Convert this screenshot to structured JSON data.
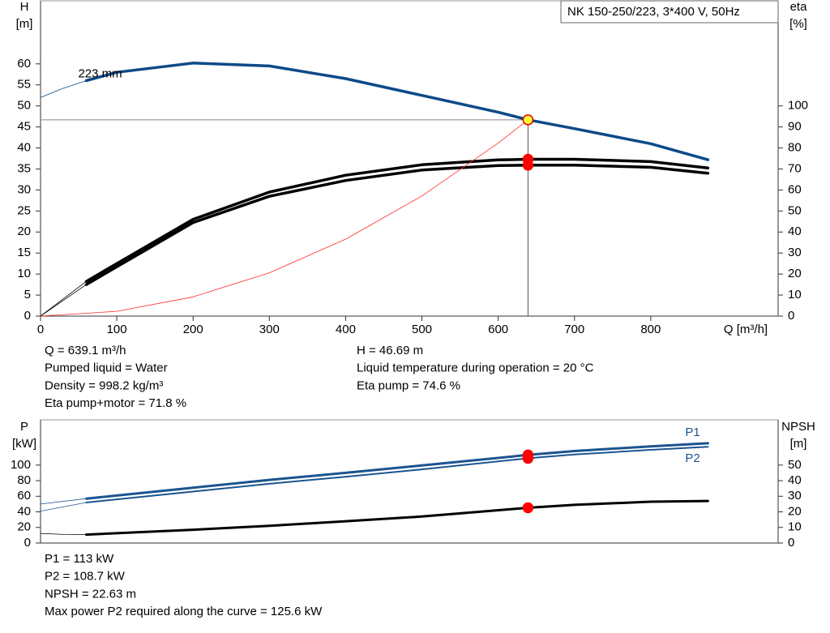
{
  "chart_data": [
    {
      "type": "line",
      "title": "NK 150-250/223, 3*400 V, 50Hz",
      "ylabel": "H",
      "yunit": "[m]",
      "y2label": "eta",
      "y2unit": "[%]",
      "xlabel": "Q [m³/h]",
      "xlim": [
        0,
        967
      ],
      "xticks": [
        0,
        100,
        200,
        300,
        400,
        500,
        600,
        700,
        800
      ],
      "ylim": [
        0,
        75
      ],
      "yticks": [
        0,
        5,
        10,
        15,
        20,
        25,
        30,
        35,
        40,
        45,
        50,
        55,
        60
      ],
      "y2lim": [
        0,
        150
      ],
      "y2ticks": [
        0,
        10,
        20,
        30,
        40,
        50,
        60,
        70,
        80,
        90,
        100
      ],
      "series": [
        {
          "label": "223 mm",
          "color": "#0d4a88",
          "width": 3.5,
          "x": [
            60,
            100,
            200,
            300,
            400,
            500,
            600,
            639.1,
            700,
            800,
            875
          ],
          "values": [
            56,
            58,
            60.2,
            59.5,
            56.5,
            52.5,
            48.5,
            46.69,
            44.6,
            41,
            37.2
          ]
        },
        {
          "color": "#0d4a88",
          "width": 0.8,
          "x": [
            0,
            30,
            60
          ],
          "values": [
            52,
            54.2,
            56
          ]
        },
        {
          "color": "#000000",
          "width": 3.5,
          "axis": "y2",
          "x": [
            60,
            100,
            200,
            300,
            400,
            500,
            600,
            639.1,
            700,
            800,
            875
          ],
          "values": [
            16.5,
            25,
            46,
            59,
            67,
            72,
            74.3,
            74.6,
            74.6,
            73.5,
            70.5
          ]
        },
        {
          "color": "#000000",
          "width": 3.5,
          "axis": "y2",
          "x": [
            60,
            100,
            200,
            300,
            400,
            500,
            600,
            639.1,
            700,
            800,
            875
          ],
          "values": [
            15,
            23.5,
            44.5,
            57,
            64.5,
            69.5,
            71.6,
            71.8,
            71.8,
            70.8,
            68
          ]
        },
        {
          "color": "#000000",
          "width": 0.8,
          "axis": "y2",
          "x": [
            0,
            60
          ],
          "values": [
            0,
            16.5
          ]
        },
        {
          "color": "#000000",
          "width": 0.8,
          "axis": "y2",
          "x": [
            0,
            60
          ],
          "values": [
            0,
            15
          ]
        },
        {
          "color": "#ff2a2a",
          "width": 0.8,
          "x": [
            0,
            100,
            200,
            300,
            400,
            500,
            600,
            639.1
          ],
          "values": [
            0,
            1.14,
            4.57,
            10.29,
            18.29,
            28.58,
            41.15,
            46.69
          ]
        }
      ],
      "points": [
        {
          "x": 639.1,
          "y": 46.69,
          "color": "#ffff33",
          "edge": "#e00000",
          "guides": true
        },
        {
          "x": 639.1,
          "y": 74.6,
          "axis": "y2",
          "color": "#ff0000"
        },
        {
          "x": 639.1,
          "y": 71.8,
          "axis": "y2",
          "color": "#ff0000"
        }
      ],
      "notes": [
        [
          "Q = 639.1 m³/h",
          "Pumped liquid = Water",
          "Density = 998.2 kg/m³",
          "Eta pump+motor = 71.8 %"
        ],
        [
          "H = 46.69 m",
          "Liquid temperature during operation = 20 °C",
          "Eta pump = 74.6 %"
        ]
      ]
    },
    {
      "type": "line",
      "ylabel": "P",
      "yunit": "[kW]",
      "y2label": "NPSH",
      "y2unit": "[m]",
      "xlim": [
        0,
        967
      ],
      "ylim": [
        0,
        158
      ],
      "yticks": [
        0,
        20,
        40,
        60,
        80,
        100
      ],
      "y2lim": [
        0,
        79
      ],
      "y2ticks": [
        0,
        10,
        20,
        30,
        40,
        50
      ],
      "series": [
        {
          "label": "P1",
          "color": "#1a5490",
          "width": 3,
          "x": [
            60,
            200,
            300,
            400,
            500,
            639.1,
            700,
            800,
            875
          ],
          "values": [
            57,
            71,
            81,
            90,
            99.5,
            113,
            118,
            124,
            128
          ]
        },
        {
          "label": "P2",
          "color": "#1a5490",
          "width": 2,
          "x": [
            60,
            200,
            300,
            400,
            500,
            639.1,
            700,
            800,
            875
          ],
          "values": [
            52,
            66,
            76,
            85,
            94.5,
            108.7,
            113.5,
            119.5,
            123.5
          ]
        },
        {
          "color": "#1a5490",
          "width": 0.8,
          "x": [
            0,
            60
          ],
          "values": [
            50,
            57
          ]
        },
        {
          "color": "#1a5490",
          "width": 0.8,
          "x": [
            0,
            60
          ],
          "values": [
            41,
            52
          ]
        },
        {
          "color": "#000000",
          "width": 3,
          "axis": "y2",
          "x": [
            60,
            200,
            300,
            400,
            500,
            639.1,
            700,
            800,
            875
          ],
          "values": [
            5.4,
            8.5,
            11,
            14,
            17,
            22.63,
            24.5,
            26.5,
            27
          ]
        },
        {
          "color": "#000000",
          "width": 0.8,
          "axis": "y2",
          "x": [
            0,
            30,
            60
          ],
          "values": [
            6.2,
            5.5,
            5.4
          ]
        }
      ],
      "points": [
        {
          "x": 639.1,
          "y": 113,
          "color": "#ff0000"
        },
        {
          "x": 639.1,
          "y": 108.7,
          "color": "#ff0000"
        },
        {
          "x": 639.1,
          "y": 22.63,
          "axis": "y2",
          "color": "#ff0000"
        }
      ],
      "notes": [
        [
          "P1 = 113 kW",
          "P2 = 108.7 kW",
          "NPSH = 22.63 m",
          "Max power P2 required along the curve = 125.6 kW"
        ]
      ]
    }
  ]
}
